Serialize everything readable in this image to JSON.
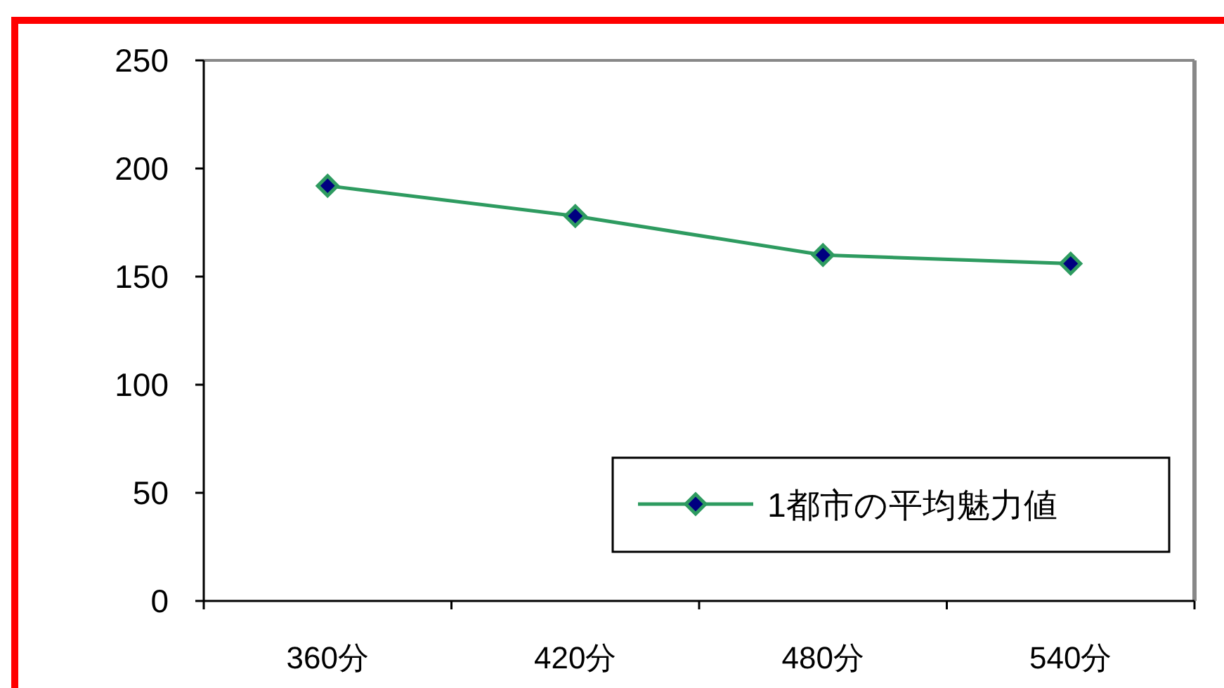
{
  "chart_data": {
    "type": "line",
    "categories": [
      "360分",
      "420分",
      "480分",
      "540分"
    ],
    "series": [
      {
        "name": "1都市の平均魅力値",
        "color": "#2e9b60",
        "values": [
          192,
          178,
          160,
          156
        ]
      }
    ],
    "ylim": [
      0,
      250
    ],
    "yticks": [
      0,
      50,
      100,
      150,
      200,
      250
    ],
    "grid": false,
    "legend": "bottom right",
    "marker": "diamond",
    "line_style": "solid"
  }
}
